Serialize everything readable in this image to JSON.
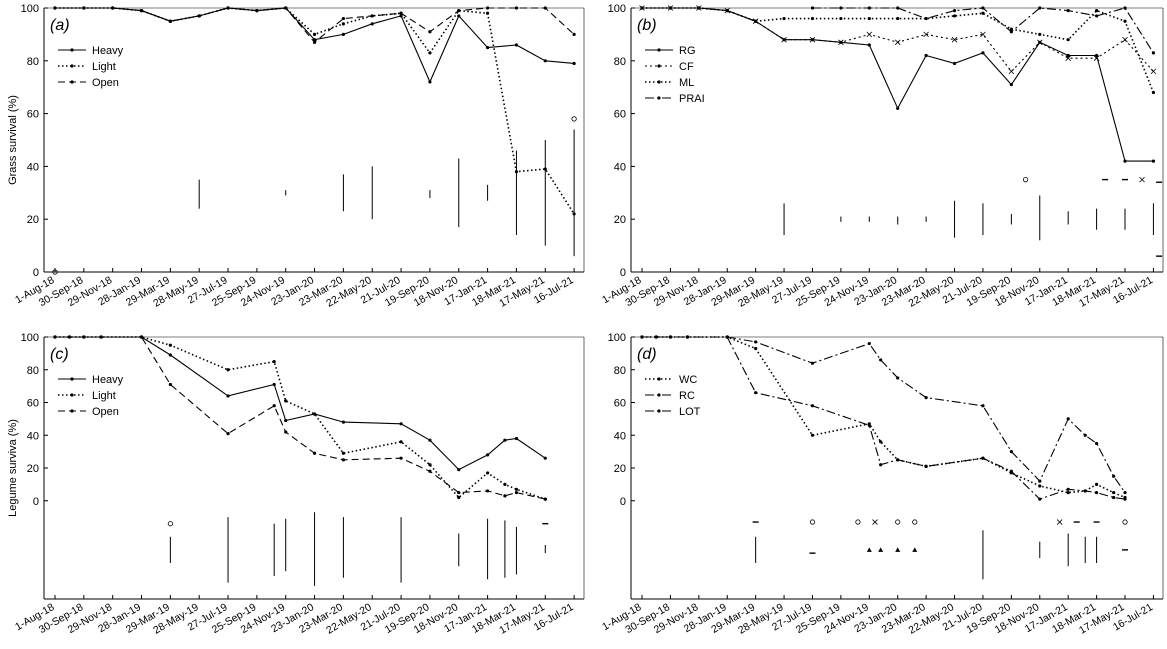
{
  "x_tick_labels": [
    "1-Aug-18",
    "30-Sep-18",
    "29-Nov-18",
    "28-Jan-19",
    "29-Mar-19",
    "28-May-19",
    "27-Jul-19",
    "25-Sep-19",
    "24-Nov-19",
    "23-Jan-20",
    "23-Mar-20",
    "22-May-20",
    "21-Jul-20",
    "19-Sep-20",
    "18-Nov-20",
    "17-Jan-21",
    "18-Mar-21",
    "17-May-21",
    "16-Jul-21"
  ],
  "chart_data": [
    {
      "id": "a",
      "panel_label": "(a)",
      "type": "line",
      "ylabel": "Grass survival (%)",
      "ylim": [
        0,
        100
      ],
      "yticks": [
        0,
        20,
        40,
        60,
        80,
        100
      ],
      "legend_position": "top-left",
      "series": [
        {
          "name": "Heavy",
          "style": "solid",
          "x": [
            0,
            1,
            2,
            3,
            4,
            5,
            6,
            7,
            8,
            9,
            10,
            11,
            12,
            13,
            14,
            15,
            16,
            17,
            18
          ],
          "y": [
            100,
            100,
            100,
            99,
            95,
            97,
            100,
            99,
            100,
            88,
            90,
            94,
            97,
            72,
            97,
            85,
            86,
            80,
            79
          ]
        },
        {
          "name": "Light",
          "style": "dotted",
          "x": [
            0,
            1,
            2,
            3,
            4,
            5,
            6,
            7,
            8,
            9,
            10,
            11,
            12,
            13,
            14,
            15,
            16,
            17,
            18
          ],
          "y": [
            100,
            100,
            100,
            99,
            95,
            97,
            100,
            99,
            100,
            90,
            94,
            97,
            98,
            83,
            99,
            98,
            38,
            39,
            22
          ]
        },
        {
          "name": "Open",
          "style": "dashed",
          "x": [
            0,
            1,
            2,
            3,
            4,
            5,
            6,
            7,
            8,
            9,
            10,
            11,
            12,
            13,
            14,
            15,
            16,
            17,
            18
          ],
          "y": [
            100,
            100,
            100,
            99,
            95,
            97,
            100,
            99,
            100,
            87,
            96,
            97,
            98,
            91,
            99,
            100,
            100,
            100,
            90
          ]
        }
      ],
      "error_bars": [
        {
          "x": 5,
          "low": 24,
          "high": 35
        },
        {
          "x": 8,
          "low": 29,
          "high": 31
        },
        {
          "x": 10,
          "low": 23,
          "high": 37
        },
        {
          "x": 11,
          "low": 20,
          "high": 40
        },
        {
          "x": 13,
          "low": 28,
          "high": 31
        },
        {
          "x": 14,
          "low": 17,
          "high": 43
        },
        {
          "x": 15,
          "low": 27,
          "high": 33
        },
        {
          "x": 16,
          "low": 14,
          "high": 46
        },
        {
          "x": 17,
          "low": 10,
          "high": 50
        },
        {
          "x": 18,
          "low": 6,
          "high": 54
        }
      ],
      "markers": [
        {
          "symbol": "o",
          "x": 0,
          "y": 0
        },
        {
          "symbol": "o",
          "x": 18,
          "y": 58
        }
      ]
    },
    {
      "id": "b",
      "panel_label": "(b)",
      "type": "line",
      "ylabel": "",
      "ylim": [
        0,
        100
      ],
      "yticks": [
        0,
        20,
        40,
        60,
        80,
        100
      ],
      "legend_position": "top-left",
      "series": [
        {
          "name": "RG",
          "style": "solid",
          "x": [
            0,
            1,
            2,
            3,
            4,
            5,
            6,
            7,
            8,
            9,
            10,
            11,
            12,
            13,
            14,
            15,
            16,
            17,
            18
          ],
          "y": [
            100,
            100,
            100,
            99,
            95,
            88,
            88,
            87,
            86,
            62,
            82,
            79,
            83,
            71,
            87,
            82,
            82,
            42,
            42
          ]
        },
        {
          "name": "CF",
          "style": "cross",
          "x": [
            0,
            1,
            2,
            3,
            4,
            5,
            6,
            7,
            8,
            9,
            10,
            11,
            12,
            13,
            14,
            15,
            16,
            17,
            18
          ],
          "y": [
            100,
            100,
            100,
            99,
            95,
            88,
            88,
            87,
            90,
            87,
            90,
            88,
            90,
            76,
            87,
            81,
            81,
            88,
            76
          ]
        },
        {
          "name": "ML",
          "style": "dotted",
          "x": [
            0,
            1,
            2,
            3,
            4,
            5,
            6,
            7,
            8,
            9,
            10,
            11,
            12,
            13,
            14,
            15,
            16,
            17,
            18
          ],
          "y": [
            100,
            100,
            100,
            99,
            95,
            96,
            96,
            96,
            96,
            96,
            96,
            97,
            98,
            92,
            90,
            88,
            99,
            95,
            68
          ]
        },
        {
          "name": "PRAI",
          "style": "dashdot",
          "x": [
            6,
            7,
            8,
            9,
            10,
            11,
            12,
            13,
            14,
            15,
            16,
            17,
            18
          ],
          "y": [
            100,
            100,
            100,
            100,
            96,
            99,
            100,
            91,
            100,
            99,
            97,
            100,
            83
          ]
        }
      ],
      "error_bars": [
        {
          "x": 5,
          "low": 14,
          "high": 26
        },
        {
          "x": 7,
          "low": 19,
          "high": 21
        },
        {
          "x": 8,
          "low": 19,
          "high": 21
        },
        {
          "x": 9,
          "low": 18,
          "high": 21
        },
        {
          "x": 10,
          "low": 19,
          "high": 21
        },
        {
          "x": 11,
          "low": 13,
          "high": 27
        },
        {
          "x": 12,
          "low": 14,
          "high": 26
        },
        {
          "x": 13,
          "low": 18,
          "high": 22
        },
        {
          "x": 14,
          "low": 12,
          "high": 29
        },
        {
          "x": 15,
          "low": 18,
          "high": 23
        },
        {
          "x": 16,
          "low": 16,
          "high": 24
        },
        {
          "x": 17,
          "low": 16,
          "high": 24
        },
        {
          "x": 18,
          "low": 14,
          "high": 26
        }
      ],
      "markers": [
        {
          "symbol": "o",
          "x": 13.5,
          "y": 35
        },
        {
          "symbol": "-",
          "x": 16.3,
          "y": 35
        },
        {
          "symbol": "-",
          "x": 17,
          "y": 35
        },
        {
          "symbol": "x",
          "x": 17.6,
          "y": 35
        },
        {
          "symbol": "-",
          "x": 18.2,
          "y": 34
        },
        {
          "symbol": "-",
          "x": 18.2,
          "y": 6
        }
      ]
    },
    {
      "id": "c",
      "panel_label": "(c)",
      "type": "line",
      "ylabel": "Legume surviva (%)",
      "ylim": [
        -60,
        100
      ],
      "yticks": [
        0,
        20,
        40,
        60,
        80,
        100
      ],
      "legend_position": "top-left",
      "series": [
        {
          "name": "Heavy",
          "style": "solid",
          "x": [
            0,
            0.5,
            1,
            1.6,
            3,
            4,
            6,
            7.6,
            8,
            9,
            10,
            12,
            13,
            14,
            15,
            15.6,
            16,
            17
          ],
          "y": [
            100,
            100,
            100,
            100,
            100,
            89,
            64,
            71,
            49,
            53,
            48,
            47,
            37,
            19,
            28,
            37,
            38,
            26
          ]
        },
        {
          "name": "Light",
          "style": "dotted",
          "x": [
            0,
            0.5,
            1,
            1.6,
            3,
            4,
            6,
            7.6,
            8,
            9,
            10,
            12,
            13,
            14,
            15,
            15.6,
            16,
            17
          ],
          "y": [
            100,
            100,
            100,
            100,
            100,
            95,
            80,
            85,
            61,
            53,
            29,
            36,
            22,
            2,
            17,
            10,
            7,
            1
          ]
        },
        {
          "name": "Open",
          "style": "dashed",
          "x": [
            0,
            0.5,
            1,
            1.6,
            3,
            4,
            6,
            7.6,
            8,
            9,
            10,
            12,
            13,
            14,
            15,
            15.6,
            16,
            17
          ],
          "y": [
            100,
            100,
            100,
            100,
            100,
            71,
            41,
            58,
            42,
            29,
            25,
            26,
            18,
            5,
            6,
            3,
            5,
            1
          ]
        }
      ],
      "error_bars": [
        {
          "x": 4,
          "low": -38,
          "high": -22
        },
        {
          "x": 6,
          "low": -50,
          "high": -10
        },
        {
          "x": 7.6,
          "low": -46,
          "high": -14
        },
        {
          "x": 8,
          "low": -43,
          "high": -11
        },
        {
          "x": 9,
          "low": -52,
          "high": -7
        },
        {
          "x": 10,
          "low": -47,
          "high": -10
        },
        {
          "x": 12,
          "low": -50,
          "high": -10
        },
        {
          "x": 14,
          "low": -40,
          "high": -20
        },
        {
          "x": 15,
          "low": -48,
          "high": -11
        },
        {
          "x": 15.6,
          "low": -47,
          "high": -12
        },
        {
          "x": 16,
          "low": -45,
          "high": -16
        },
        {
          "x": 17,
          "low": -32,
          "high": -27
        }
      ],
      "markers": [
        {
          "symbol": "o",
          "x": 4,
          "y": -14
        },
        {
          "symbol": "-",
          "x": 17,
          "y": -14
        }
      ]
    },
    {
      "id": "d",
      "panel_label": "(d)",
      "type": "line",
      "ylabel": "",
      "ylim": [
        -60,
        100
      ],
      "yticks": [
        0,
        20,
        40,
        60,
        80,
        100
      ],
      "legend_position": "top-left",
      "series": [
        {
          "name": "WC",
          "style": "dotted",
          "x": [
            0,
            0.5,
            1,
            1.6,
            3,
            4,
            6,
            8,
            8.4,
            9,
            10,
            12,
            13,
            14,
            15,
            15.6,
            16,
            16.6,
            17
          ],
          "y": [
            100,
            100,
            100,
            100,
            100,
            93,
            40,
            47,
            36,
            25,
            21,
            26,
            17,
            9,
            5,
            6,
            10,
            5,
            2
          ]
        },
        {
          "name": "RC",
          "style": "dashdot",
          "x": [
            0,
            0.5,
            1,
            1.6,
            3,
            4,
            6,
            8,
            8.4,
            9,
            10,
            12,
            13,
            14,
            15,
            15.6,
            16,
            16.6,
            17
          ],
          "y": [
            100,
            100,
            100,
            100,
            100,
            66,
            58,
            46,
            22,
            25,
            21,
            26,
            18,
            1,
            7,
            6,
            5,
            2,
            1
          ]
        },
        {
          "name": "LOT",
          "style": "dashdot",
          "x": [
            0,
            0.5,
            1,
            1.6,
            3,
            4,
            6,
            8,
            8.4,
            9,
            10,
            12,
            13,
            14,
            15,
            15.6,
            16,
            16.6,
            17
          ],
          "y": [
            100,
            100,
            100,
            100,
            100,
            97,
            84,
            96,
            86,
            75,
            63,
            58,
            30,
            12,
            50,
            40,
            35,
            15,
            5
          ]
        }
      ],
      "error_bars": [
        {
          "x": 4,
          "low": -38,
          "high": -22
        },
        {
          "x": 12,
          "low": -48,
          "high": -18
        },
        {
          "x": 14,
          "low": -35,
          "high": -25
        },
        {
          "x": 15,
          "low": -40,
          "high": -20
        },
        {
          "x": 15.6,
          "low": -38,
          "high": -22
        },
        {
          "x": 16,
          "low": -38,
          "high": -22
        }
      ],
      "markers": [
        {
          "symbol": "-",
          "x": 4,
          "y": -13
        },
        {
          "symbol": "o",
          "x": 6,
          "y": -13
        },
        {
          "symbol": "o",
          "x": 7.6,
          "y": -13
        },
        {
          "symbol": "x",
          "x": 8.2,
          "y": -13
        },
        {
          "symbol": "o",
          "x": 9,
          "y": -13
        },
        {
          "symbol": "o",
          "x": 9.6,
          "y": -13
        },
        {
          "symbol": "x",
          "x": 14.7,
          "y": -13
        },
        {
          "symbol": "-",
          "x": 15.3,
          "y": -13
        },
        {
          "symbol": "-",
          "x": 16,
          "y": -13
        },
        {
          "symbol": "o",
          "x": 17,
          "y": -13
        },
        {
          "symbol": "-",
          "x": 6,
          "y": -32
        },
        {
          "symbol": "^",
          "x": 8,
          "y": -30
        },
        {
          "symbol": "^",
          "x": 8.4,
          "y": -30
        },
        {
          "symbol": "^",
          "x": 9,
          "y": -30
        },
        {
          "symbol": "^",
          "x": 9.6,
          "y": -30
        },
        {
          "symbol": "-",
          "x": 17,
          "y": -30
        }
      ]
    }
  ]
}
